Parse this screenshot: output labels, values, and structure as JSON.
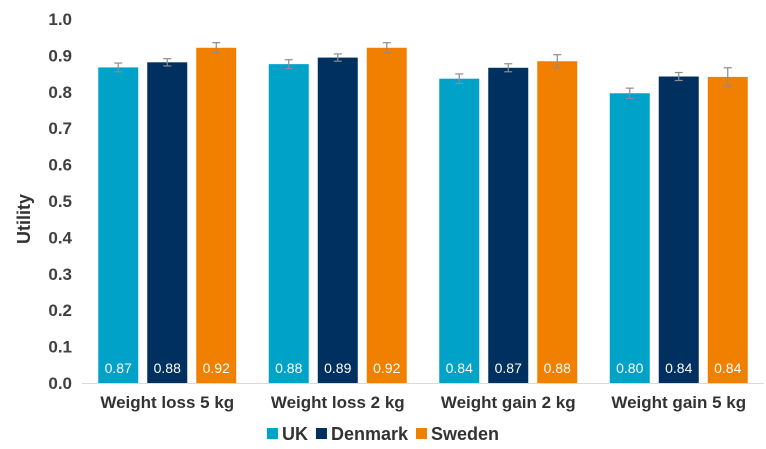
{
  "chart_data": {
    "type": "bar",
    "title": "",
    "xlabel": "",
    "ylabel": "Utility",
    "ylim": [
      0,
      1.0
    ],
    "yticks": [
      "0.0",
      "0.1",
      "0.2",
      "0.3",
      "0.4",
      "0.5",
      "0.6",
      "0.7",
      "0.8",
      "0.9",
      "1.0"
    ],
    "categories": [
      "Weight loss 5 kg",
      "Weight loss 2 kg",
      "Weight gain 2 kg",
      "Weight gain 5 kg"
    ],
    "series": [
      {
        "name": "UK",
        "color": "#00A2C8",
        "values": [
          0.867,
          0.876,
          0.836,
          0.796
        ],
        "labels": [
          "0.87",
          "0.88",
          "0.84",
          "0.80"
        ],
        "errors": [
          0.012,
          0.012,
          0.013,
          0.014
        ]
      },
      {
        "name": "Denmark",
        "color": "#00305F",
        "values": [
          0.881,
          0.894,
          0.866,
          0.842
        ],
        "labels": [
          "0.88",
          "0.89",
          "0.87",
          "0.84"
        ],
        "errors": [
          0.01,
          0.01,
          0.011,
          0.011
        ]
      },
      {
        "name": "Sweden",
        "color": "#F28000",
        "values": [
          0.921,
          0.921,
          0.884,
          0.841
        ],
        "labels": [
          "0.92",
          "0.92",
          "0.88",
          "0.84"
        ],
        "errors": [
          0.014,
          0.014,
          0.018,
          0.025
        ]
      }
    ],
    "error_bar_color": "#8c8c8c",
    "grid": false,
    "legend_position": "bottom"
  }
}
